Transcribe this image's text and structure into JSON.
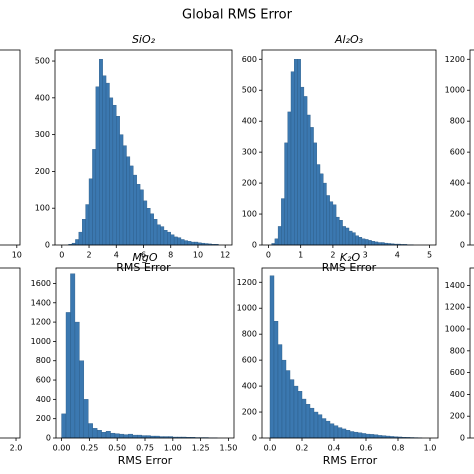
{
  "title": "Global RMS Error",
  "chart_data": [
    {
      "type": "histogram",
      "xlim": [
        0,
        10.2
      ],
      "xticks": [
        10
      ]
    },
    {
      "type": "histogram",
      "title": "SiO₂",
      "x_label": "RMS Error",
      "color": "#3b78b0",
      "bins": [
        0.5,
        0.75,
        1,
        1.25,
        1.5,
        1.75,
        2,
        2.25,
        2.5,
        2.75,
        3,
        3.25,
        3.5,
        3.75,
        4,
        4.25,
        4.5,
        4.75,
        5,
        5.25,
        5.5,
        5.75,
        6,
        6.25,
        6.5,
        6.75,
        7,
        7.25,
        7.5,
        7.75,
        8,
        8.25,
        8.5,
        8.75,
        9,
        9.25,
        9.5,
        9.75,
        10,
        10.25,
        10.5,
        10.75,
        11,
        11.25,
        11.5
      ],
      "values": [
        2,
        5,
        15,
        35,
        70,
        110,
        180,
        260,
        430,
        505,
        460,
        440,
        400,
        380,
        350,
        300,
        270,
        240,
        215,
        190,
        165,
        150,
        120,
        100,
        85,
        70,
        55,
        50,
        40,
        35,
        28,
        22,
        20,
        15,
        12,
        10,
        8,
        8,
        6,
        5,
        4,
        3,
        2,
        2
      ],
      "xlim": [
        -0.5,
        12.5
      ],
      "xticks": [
        0,
        2,
        4,
        6,
        8,
        10,
        12
      ],
      "ylim": [
        0,
        530
      ],
      "yticks": [
        0,
        100,
        200,
        300,
        400,
        500
      ]
    },
    {
      "type": "histogram",
      "title": "Al₂O₃",
      "x_label": "RMS Error",
      "color": "#3b78b0",
      "bins": [
        0.1,
        0.2,
        0.3,
        0.4,
        0.5,
        0.6,
        0.7,
        0.8,
        0.9,
        1,
        1.1,
        1.2,
        1.3,
        1.4,
        1.5,
        1.6,
        1.7,
        1.8,
        1.9,
        2,
        2.1,
        2.2,
        2.3,
        2.4,
        2.5,
        2.6,
        2.7,
        2.8,
        2.9,
        3,
        3.1,
        3.2,
        3.3,
        3.4,
        3.5,
        3.6,
        3.7,
        3.8,
        3.9,
        4,
        4.1,
        4.2,
        4.3,
        4.4,
        4.5
      ],
      "values": [
        5,
        20,
        60,
        150,
        330,
        430,
        560,
        600,
        600,
        510,
        480,
        420,
        380,
        330,
        260,
        230,
        200,
        160,
        140,
        130,
        90,
        80,
        60,
        55,
        45,
        40,
        30,
        25,
        20,
        18,
        15,
        12,
        10,
        8,
        8,
        6,
        5,
        4,
        3,
        3,
        2,
        2,
        1,
        1
      ],
      "xlim": [
        -0.2,
        5.2
      ],
      "xticks": [
        0,
        1,
        2,
        3,
        4,
        5
      ],
      "ylim": [
        0,
        630
      ],
      "yticks": [
        0,
        100,
        200,
        300,
        400,
        500,
        600
      ]
    },
    {
      "type": "histogram",
      "ylim": [
        0,
        1260
      ],
      "yticks": [
        0,
        200,
        400,
        600,
        800,
        1000,
        1200
      ]
    },
    {
      "type": "histogram",
      "xlim": [
        0,
        2.05
      ],
      "xticks": [
        {
          "value": 2,
          "label": "2.0"
        }
      ]
    },
    {
      "type": "histogram",
      "title": "MgO",
      "x_label": "RMS Error",
      "color": "#3b78b0",
      "bins": [
        0,
        0.04,
        0.08,
        0.12,
        0.16,
        0.2,
        0.24,
        0.28,
        0.32,
        0.36,
        0.4,
        0.44,
        0.48,
        0.52,
        0.56,
        0.6,
        0.64,
        0.68,
        0.72,
        0.76,
        0.8,
        0.84,
        0.88,
        0.92,
        0.96,
        1,
        1.04,
        1.08,
        1.12,
        1.16,
        1.2,
        1.24,
        1.28,
        1.32,
        1.36,
        1.4
      ],
      "values": [
        250,
        1300,
        1700,
        1200,
        800,
        400,
        150,
        100,
        80,
        60,
        70,
        50,
        45,
        40,
        35,
        40,
        30,
        30,
        25,
        25,
        20,
        20,
        15,
        15,
        15,
        10,
        10,
        10,
        8,
        8,
        5,
        5,
        5,
        3,
        3
      ],
      "xlim": [
        -0.05,
        1.55
      ],
      "xticks": [
        {
          "value": 0,
          "label": "0.00"
        },
        {
          "value": 0.25,
          "label": "0.25"
        },
        {
          "value": 0.5,
          "label": "0.50"
        },
        {
          "value": 0.75,
          "label": "0.75"
        },
        {
          "value": 1,
          "label": "1.00"
        },
        {
          "value": 1.25,
          "label": "1.25"
        },
        {
          "value": 1.5,
          "label": "1.50"
        }
      ],
      "ylim": [
        0,
        1760
      ],
      "yticks": [
        0,
        200,
        400,
        600,
        800,
        1000,
        1200,
        1400,
        1600
      ]
    },
    {
      "type": "histogram",
      "title": "K₂O",
      "x_label": "RMS Error",
      "color": "#3b78b0",
      "bins": [
        0,
        0.025,
        0.05,
        0.075,
        0.1,
        0.125,
        0.15,
        0.175,
        0.2,
        0.225,
        0.25,
        0.275,
        0.3,
        0.325,
        0.35,
        0.375,
        0.4,
        0.425,
        0.45,
        0.475,
        0.5,
        0.525,
        0.55,
        0.575,
        0.6,
        0.625,
        0.65,
        0.675,
        0.7,
        0.725,
        0.75,
        0.775,
        0.8,
        0.825,
        0.85,
        0.875,
        0.9,
        0.925,
        0.95
      ],
      "values": [
        1250,
        900,
        720,
        600,
        520,
        450,
        400,
        360,
        300,
        260,
        230,
        200,
        180,
        150,
        130,
        110,
        95,
        80,
        70,
        60,
        50,
        45,
        40,
        35,
        30,
        28,
        25,
        20,
        18,
        15,
        12,
        10,
        8,
        6,
        5,
        4,
        3,
        2
      ],
      "xlim": [
        -0.05,
        1.05
      ],
      "xticks": [
        {
          "value": 0,
          "label": "0.0"
        },
        {
          "value": 0.2,
          "label": "0.2"
        },
        {
          "value": 0.4,
          "label": "0.4"
        },
        {
          "value": 0.6,
          "label": "0.6"
        },
        {
          "value": 0.8,
          "label": "0.8"
        },
        {
          "value": 1,
          "label": "1.0"
        }
      ],
      "ylim": [
        0,
        1310
      ],
      "yticks": [
        0,
        200,
        400,
        600,
        800,
        1000,
        1200
      ]
    },
    {
      "type": "histogram",
      "ylim": [
        0,
        1560
      ],
      "yticks": [
        0,
        200,
        400,
        600,
        800,
        1000,
        1200,
        1400
      ]
    }
  ]
}
